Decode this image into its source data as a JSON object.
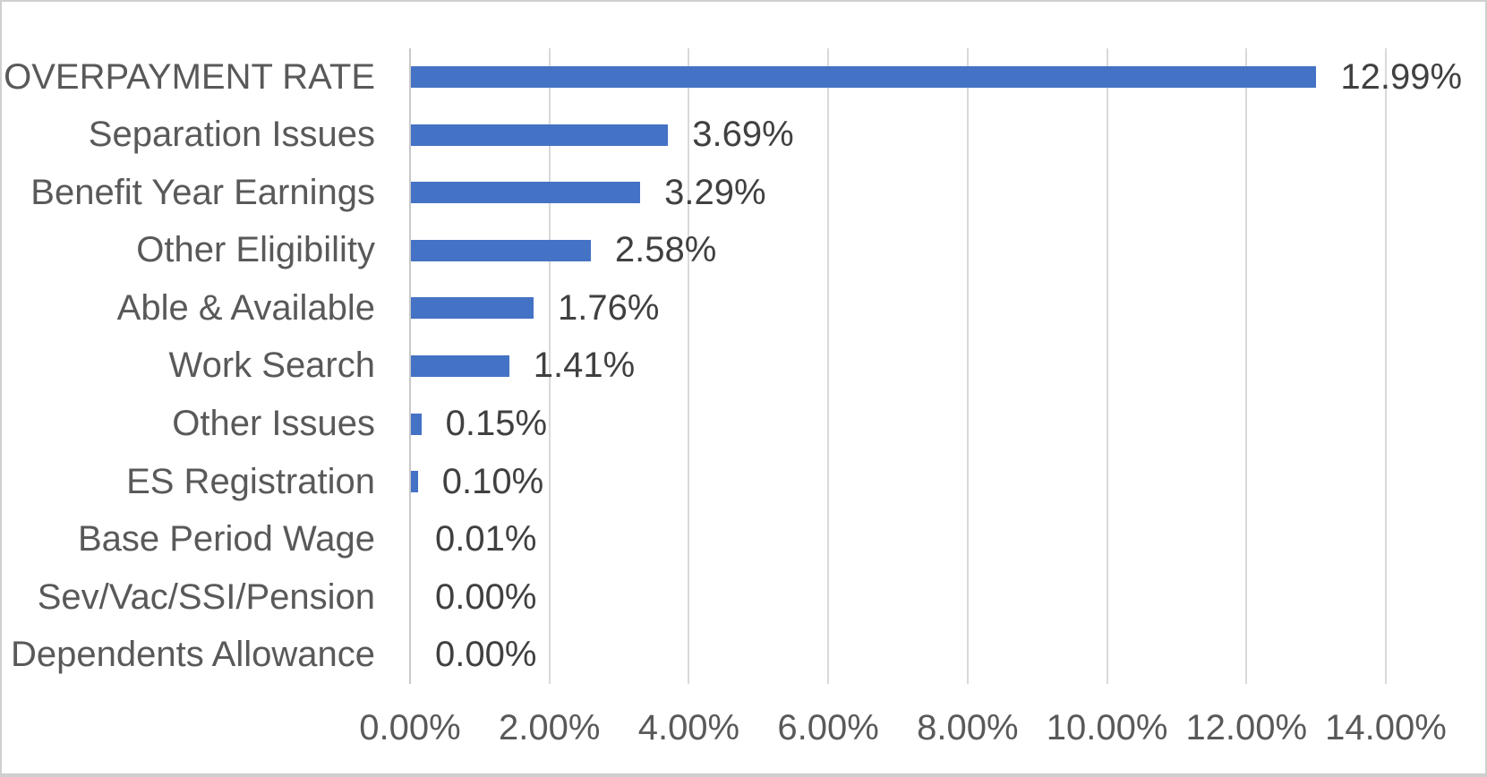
{
  "chart_data": {
    "type": "bar",
    "orientation": "horizontal",
    "title": "",
    "xlabel": "",
    "ylabel": "",
    "grid": true,
    "legend_position": "none",
    "xlim": [
      0,
      14
    ],
    "categories": [
      "OVERPAYMENT RATE",
      "Separation Issues",
      "Benefit Year Earnings",
      "Other Eligibility",
      "Able & Available",
      "Work Search",
      "Other Issues",
      "ES Registration",
      "Base Period Wage",
      "Sev/Vac/SSI/Pension",
      "Dependents Allowance"
    ],
    "values": [
      12.99,
      3.69,
      3.29,
      2.58,
      1.76,
      1.41,
      0.15,
      0.1,
      0.01,
      0.0,
      0.0
    ],
    "value_labels": [
      "12.99%",
      "3.69%",
      "3.29%",
      "2.58%",
      "1.76%",
      "1.41%",
      "0.15%",
      "0.10%",
      "0.01%",
      "0.00%",
      "0.00%"
    ],
    "x_tick_values": [
      0,
      2,
      4,
      6,
      8,
      10,
      12,
      14
    ],
    "x_tick_labels": [
      "0.00%",
      "2.00%",
      "4.00%",
      "6.00%",
      "8.00%",
      "10.00%",
      "12.00%",
      "14.00%"
    ],
    "colors": {
      "bar": "#4472C4",
      "gridline": "#D9D9D9",
      "category_text": "#595959",
      "value_text": "#404040",
      "tick_text": "#595959",
      "frame_border": "#CFCFCF",
      "background": "#FFFFFF"
    }
  }
}
